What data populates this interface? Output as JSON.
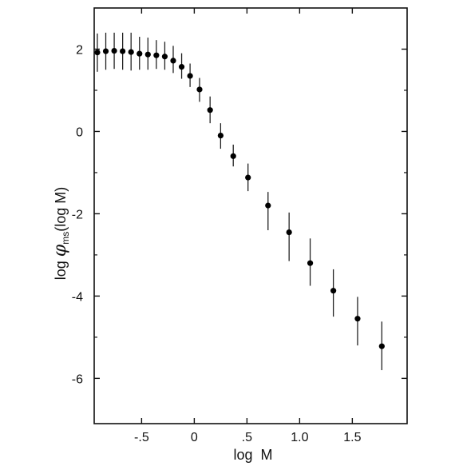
{
  "chart_data": {
    "type": "scatter",
    "title": "",
    "xlabel": "log  M",
    "ylabel": {
      "prefix": "log ",
      "symbol": "φ",
      "subscript": "ms",
      "suffix": "(log M)"
    },
    "xlim": [
      -0.95,
      2.02
    ],
    "ylim": [
      -7.1,
      3.0
    ],
    "xticks": [
      {
        "value": -0.5,
        "label": "-.5"
      },
      {
        "value": 0,
        "label": "0"
      },
      {
        "value": 0.5,
        "label": ".5"
      },
      {
        "value": 1.0,
        "label": "1.0"
      },
      {
        "value": 1.5,
        "label": "1.5"
      }
    ],
    "yticks": [
      {
        "value": 2,
        "label": "2"
      },
      {
        "value": 0,
        "label": "0"
      },
      {
        "value": -2,
        "label": "-2"
      },
      {
        "value": -4,
        "label": "-4"
      },
      {
        "value": -6,
        "label": "-6"
      }
    ],
    "minor_ticks": [
      1,
      -1,
      -3,
      -5
    ],
    "grid": false,
    "legend": "none",
    "points": [
      {
        "x": -0.92,
        "y": 1.92,
        "ylo": 1.45,
        "yhi": 2.38
      },
      {
        "x": -0.84,
        "y": 1.95,
        "ylo": 1.5,
        "yhi": 2.4
      },
      {
        "x": -0.76,
        "y": 1.96,
        "ylo": 1.52,
        "yhi": 2.4
      },
      {
        "x": -0.68,
        "y": 1.95,
        "ylo": 1.5,
        "yhi": 2.4
      },
      {
        "x": -0.6,
        "y": 1.93,
        "ylo": 1.48,
        "yhi": 2.4
      },
      {
        "x": -0.52,
        "y": 1.89,
        "ylo": 1.5,
        "yhi": 2.3
      },
      {
        "x": -0.44,
        "y": 1.87,
        "ylo": 1.5,
        "yhi": 2.28
      },
      {
        "x": -0.36,
        "y": 1.85,
        "ylo": 1.52,
        "yhi": 2.22
      },
      {
        "x": -0.28,
        "y": 1.82,
        "ylo": 1.5,
        "yhi": 2.18
      },
      {
        "x": -0.2,
        "y": 1.72,
        "ylo": 1.42,
        "yhi": 2.08
      },
      {
        "x": -0.12,
        "y": 1.57,
        "ylo": 1.28,
        "yhi": 1.9
      },
      {
        "x": -0.04,
        "y": 1.35,
        "ylo": 1.08,
        "yhi": 1.65
      },
      {
        "x": 0.05,
        "y": 1.02,
        "ylo": 0.72,
        "yhi": 1.3
      },
      {
        "x": 0.15,
        "y": 0.52,
        "ylo": 0.2,
        "yhi": 0.85
      },
      {
        "x": 0.25,
        "y": -0.1,
        "ylo": -0.42,
        "yhi": 0.2
      },
      {
        "x": 0.37,
        "y": -0.6,
        "ylo": -0.85,
        "yhi": -0.32
      },
      {
        "x": 0.51,
        "y": -1.12,
        "ylo": -1.45,
        "yhi": -0.78
      },
      {
        "x": 0.7,
        "y": -1.8,
        "ylo": -2.4,
        "yhi": -1.47
      },
      {
        "x": 0.9,
        "y": -2.45,
        "ylo": -3.15,
        "yhi": -1.97
      },
      {
        "x": 1.1,
        "y": -3.2,
        "ylo": -3.75,
        "yhi": -2.6
      },
      {
        "x": 1.32,
        "y": -3.87,
        "ylo": -4.5,
        "yhi": -3.35
      },
      {
        "x": 1.55,
        "y": -4.55,
        "ylo": -5.2,
        "yhi": -4.02
      },
      {
        "x": 1.78,
        "y": -5.22,
        "ylo": -5.8,
        "yhi": -4.62
      }
    ]
  }
}
